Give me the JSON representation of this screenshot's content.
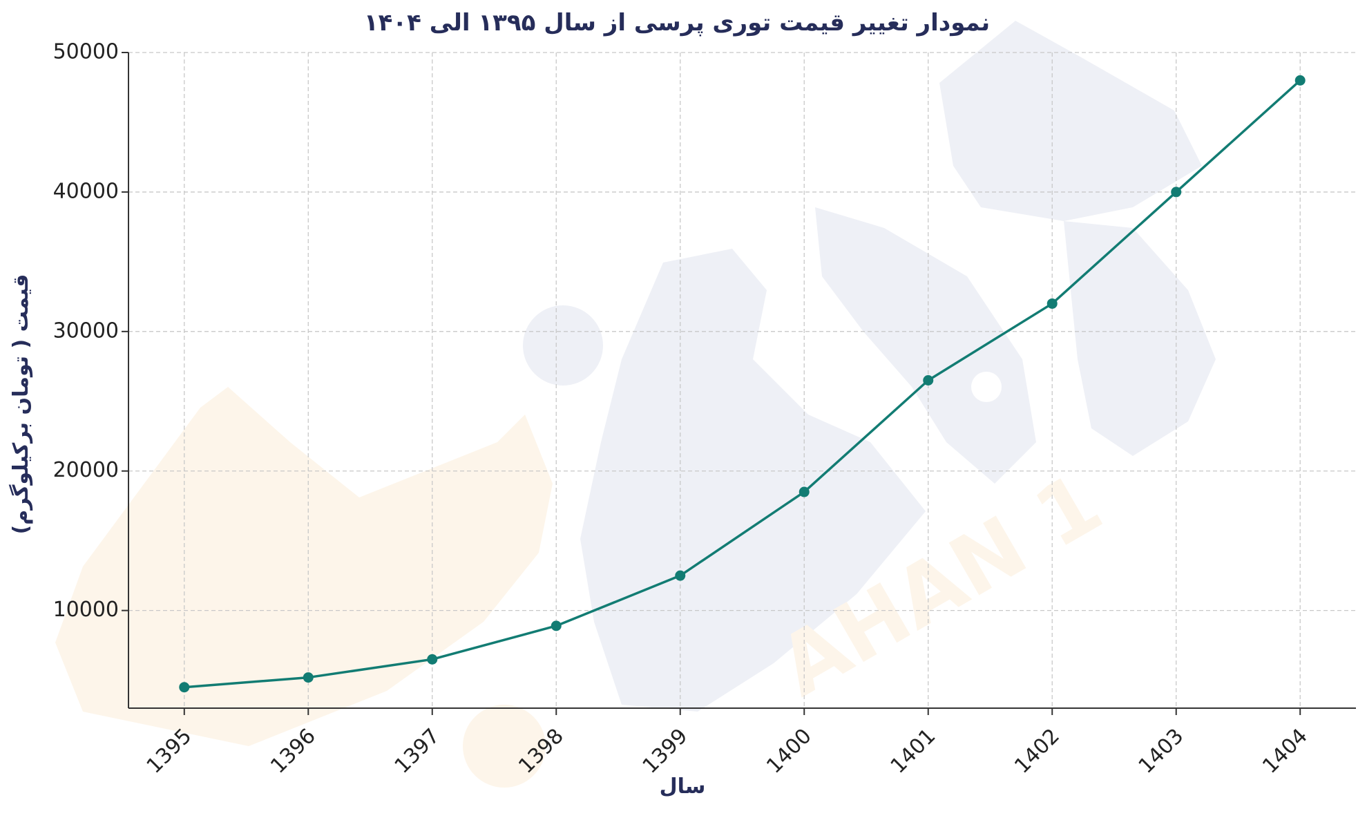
{
  "chart_data": {
    "type": "line",
    "title": "نمودار تغییر قیمت توری پرسی از سال ۱۳۹۵ الی ۱۴۰۴",
    "xlabel": "سال",
    "ylabel": "قیمت ( تومان برکیلوگرم)",
    "x": [
      1395,
      1396,
      1397,
      1398,
      1399,
      1400,
      1401,
      1402,
      1403,
      1404
    ],
    "x_tick_labels": [
      "1395",
      "1396",
      "1397",
      "1398",
      "1399",
      "1400",
      "1401",
      "1402",
      "1403",
      "1404"
    ],
    "y_ticks": [
      10000,
      20000,
      30000,
      40000,
      50000
    ],
    "y_tick_labels": [
      "10000",
      "20000",
      "30000",
      "40000",
      "50000"
    ],
    "ylim": [
      3000,
      50000
    ],
    "xlim": [
      1394.55,
      1404.45
    ],
    "grid": true,
    "series": [
      {
        "color": "#127c73",
        "values": [
          4500,
          5200,
          6500,
          8900,
          12500,
          18500,
          26500,
          32000,
          40000,
          48000
        ]
      }
    ]
  }
}
